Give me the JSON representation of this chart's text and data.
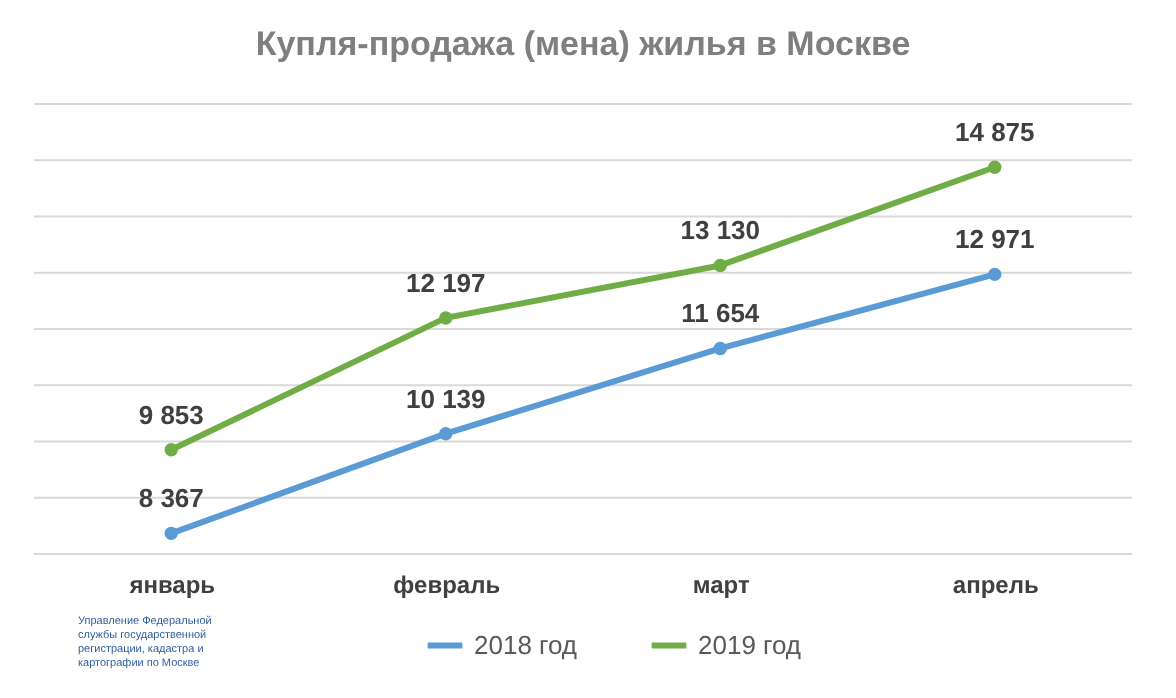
{
  "chart_data": {
    "type": "line",
    "title": "Купля-продажа (мена) жилья в Москве",
    "categories": [
      "январь",
      "февраль",
      "март",
      "апрель"
    ],
    "series": [
      {
        "name": "2018 год",
        "color": "#5b9bd5",
        "values": [
          8367,
          10139,
          11654,
          12971
        ]
      },
      {
        "name": "2019 год",
        "color": "#70ad47",
        "values": [
          9853,
          12197,
          13130,
          14875
        ]
      }
    ],
    "ylim": [
      8000,
      16000
    ],
    "yticks": [
      {
        "value": 8000,
        "label": null
      },
      {
        "value": 9000,
        "label": null
      },
      {
        "value": 10000,
        "label": null
      },
      {
        "value": 11000,
        "label": null
      },
      {
        "value": 12000,
        "label": null
      },
      {
        "value": 13000,
        "label": null
      },
      {
        "value": 14000,
        "label": null
      },
      {
        "value": 15000,
        "label": null
      },
      {
        "value": 16000,
        "label": null
      }
    ],
    "tick_labels": "x",
    "grid": "y",
    "legend": "bottom",
    "marker": "circle",
    "line_style": "solid",
    "data_labels": true,
    "annotations": [
      "Управление Федеральной\nслужбы государственной\nрегистрации, кадастра и\nкартографии по Москве"
    ]
  }
}
